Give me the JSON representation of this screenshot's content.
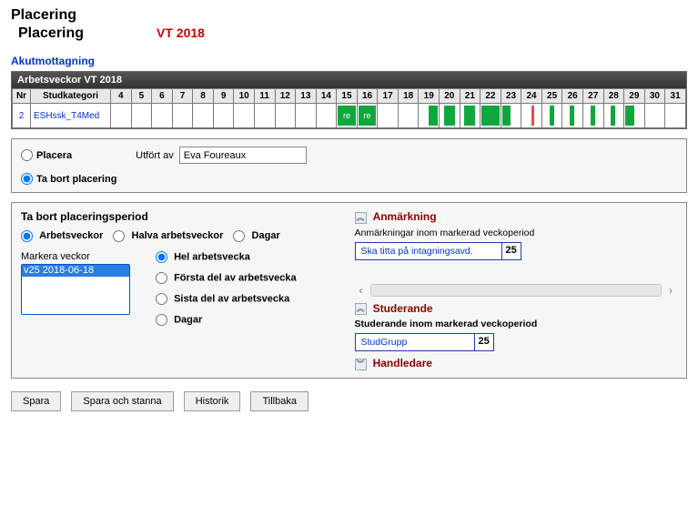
{
  "page": {
    "title1": "Placering",
    "title2": "Placering",
    "term": "VT 2018",
    "department": "Akutmottagning"
  },
  "workweeks": {
    "header": "Arbetsveckor VT 2018",
    "col_nr": "Nr",
    "col_cat": "Studkategori",
    "weeks": [
      4,
      5,
      6,
      7,
      8,
      9,
      10,
      11,
      12,
      13,
      14,
      15,
      16,
      17,
      18,
      19,
      20,
      21,
      22,
      23,
      24,
      25,
      26,
      27,
      28,
      29,
      30,
      31
    ],
    "row": {
      "nr": "2",
      "category": "ESHssk_T4Med",
      "cells": {
        "15": {
          "type": "re",
          "label": "re"
        },
        "16": {
          "type": "re",
          "label": "re"
        },
        "19": {
          "type": "half-right-green"
        },
        "20": {
          "type": "narrow-both"
        },
        "21": {
          "type": "narrow-both"
        },
        "22": {
          "type": "full-green"
        },
        "23": {
          "type": "half-left-green"
        },
        "24": {
          "type": "red-line"
        },
        "25": {
          "type": "thin-green"
        },
        "26": {
          "type": "thin-green"
        },
        "27": {
          "type": "thin-green"
        },
        "28": {
          "type": "thin-green"
        },
        "29": {
          "type": "half-left-green"
        }
      }
    },
    "colors": {
      "green": "#0fa83d",
      "red": "#e84c4c",
      "header_bg_from": "#555555",
      "header_bg_to": "#333333",
      "cell_border": "#7a7a7a"
    }
  },
  "action_panel": {
    "placera_label": "Placera",
    "utfort_av_label": "Utfört av",
    "utfort_av_value": "Eva Foureaux",
    "remove_label": "Ta bort placering",
    "selected": "remove"
  },
  "remove_panel": {
    "title": "Ta bort placeringsperiod",
    "unit_options": {
      "arbetsveckor": "Arbetsveckor",
      "halva": "Halva arbetsveckor",
      "dagar": "Dagar",
      "selected": "arbetsveckor"
    },
    "mark_label": "Markera veckor",
    "week_option": "v25 2018-06-18",
    "sub_options": {
      "hel": "Hel arbetsvecka",
      "forsta": "Första del av arbetsvecka",
      "sista": "Sista del av arbetsvecka",
      "dagar": "Dagar",
      "selected": "hel"
    }
  },
  "right_panel": {
    "anmarkning_title": "Anmärkning",
    "anmarkning_sub": "Anmärkningar inom markerad veckoperiod",
    "anmarkning_text": "Ska titta på intagningsavd.",
    "anmarkning_num": "25",
    "studerande_title": "Studerande",
    "studerande_sub": "Studerande inom markerad veckoperiod",
    "studerande_text": "StudGrupp",
    "studerande_num": "25",
    "handledare_title": "Handledare"
  },
  "buttons": {
    "save": "Spara",
    "save_stay": "Spara och stanna",
    "history": "Historik",
    "back": "Tillbaka"
  }
}
